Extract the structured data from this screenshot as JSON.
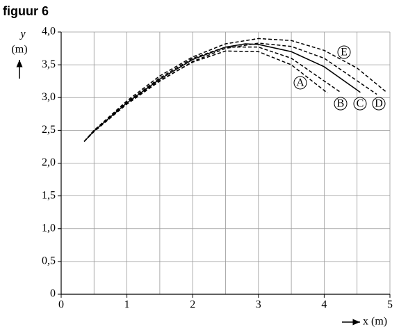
{
  "chart_data": {
    "type": "line",
    "title": "figuur 6",
    "xlabel": "x (m)",
    "ylabel": [
      "y",
      "(m)"
    ],
    "xlim": [
      0,
      5
    ],
    "ylim": [
      0,
      4
    ],
    "xticks": [
      0,
      1,
      2,
      3,
      4,
      5
    ],
    "yticks": [
      {
        "value": 0,
        "label": "0"
      },
      {
        "value": 0.5,
        "label": "0,5"
      },
      {
        "value": 1,
        "label": "1,0"
      },
      {
        "value": 1.5,
        "label": "1,5"
      },
      {
        "value": 2,
        "label": "2,0"
      },
      {
        "value": 2.5,
        "label": "2,5"
      },
      {
        "value": 3,
        "label": "3,0"
      },
      {
        "value": 3.5,
        "label": "3,5"
      },
      {
        "value": 4,
        "label": "4,0"
      }
    ],
    "grid": true,
    "series": [
      {
        "name": "A",
        "color": "#000000",
        "style": "dashed",
        "x": [
          0.35,
          0.5,
          1,
          1.5,
          2,
          2.5,
          3,
          3.5,
          4.05
        ],
        "values": [
          2.33,
          2.49,
          2.91,
          3.26,
          3.54,
          3.71,
          3.7,
          3.5,
          3.07
        ]
      },
      {
        "name": "B",
        "color": "#000000",
        "style": "dashed",
        "x": [
          0.35,
          0.5,
          1,
          1.5,
          2,
          2.5,
          3,
          3.5,
          4.25
        ],
        "values": [
          2.33,
          2.5,
          2.93,
          3.3,
          3.6,
          3.77,
          3.77,
          3.6,
          3.08
        ]
      },
      {
        "name": "C",
        "color": "#000000",
        "style": "solid",
        "x": [
          0.35,
          0.5,
          1,
          1.5,
          2,
          2.5,
          2.8,
          3,
          3.5,
          4,
          4.55
        ],
        "values": [
          2.33,
          2.49,
          2.92,
          3.28,
          3.58,
          3.77,
          3.82,
          3.81,
          3.7,
          3.47,
          3.08
        ]
      },
      {
        "name": "D",
        "color": "#000000",
        "style": "dashed",
        "x": [
          0.35,
          0.5,
          1,
          1.5,
          2,
          2.5,
          3,
          3.5,
          4,
          4.8
        ],
        "values": [
          2.33,
          2.48,
          2.9,
          3.25,
          3.55,
          3.75,
          3.83,
          3.78,
          3.6,
          3.05
        ]
      },
      {
        "name": "E",
        "color": "#000000",
        "style": "dashed",
        "x": [
          0.35,
          0.5,
          1,
          1.5,
          2,
          2.5,
          3,
          3.5,
          4,
          4.5,
          4.95
        ],
        "values": [
          2.33,
          2.5,
          2.95,
          3.33,
          3.62,
          3.82,
          3.9,
          3.87,
          3.72,
          3.45,
          3.08
        ]
      }
    ]
  }
}
